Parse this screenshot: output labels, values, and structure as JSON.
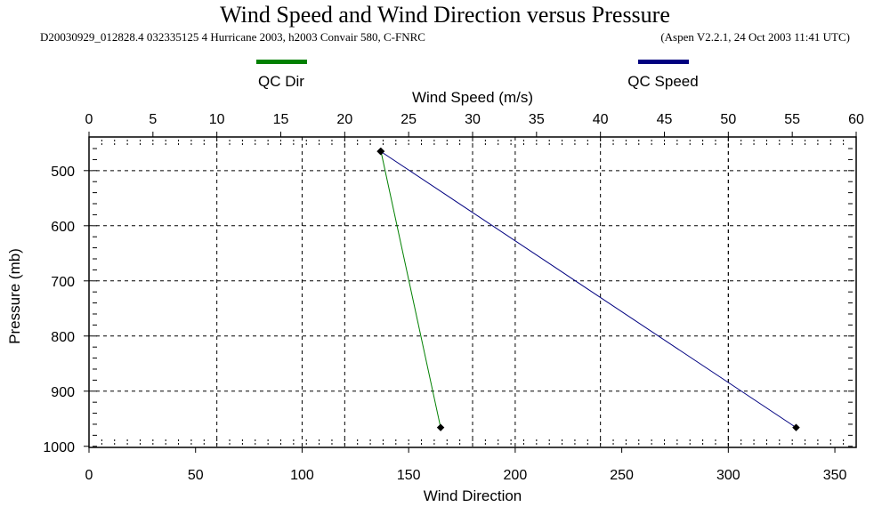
{
  "chart_data": {
    "type": "line",
    "title": "Wind Speed and Wind Direction versus Pressure",
    "subtitle_left": "D20030929_012828.4 032335125 4 Hurricane 2003, h2003 Convair 580, C-FNRC",
    "subtitle_right": "(Aspen V2.2.1, 24 Oct 2003  11:41 UTC)",
    "top_xlabel": "Wind Speed (m/s)",
    "bottom_xlabel": "Wind Direction",
    "ylabel": "Pressure (mb)",
    "top_xlim": [
      0,
      60
    ],
    "bottom_xlim": [
      0,
      360
    ],
    "ylim": [
      439,
      1002
    ],
    "y_inverted": true,
    "top_ticks": [
      "0",
      "5",
      "10",
      "15",
      "20",
      "25",
      "30",
      "35",
      "40",
      "45",
      "50",
      "55",
      "60"
    ],
    "bottom_ticks": [
      "0",
      "50",
      "100",
      "150",
      "200",
      "250",
      "300",
      "350"
    ],
    "y_ticks": [
      "500",
      "600",
      "700",
      "800",
      "900",
      "1000"
    ],
    "grid": true,
    "legend_placement": "top",
    "series": [
      {
        "name": "QC Dir",
        "axis": "bottom",
        "color": "#008000",
        "points": [
          [
            137,
            465
          ],
          [
            165,
            966
          ]
        ]
      },
      {
        "name": "QC Speed",
        "axis": "top",
        "color": "#000080",
        "points": [
          [
            22.8,
            465
          ],
          [
            55.3,
            966
          ]
        ]
      }
    ]
  }
}
